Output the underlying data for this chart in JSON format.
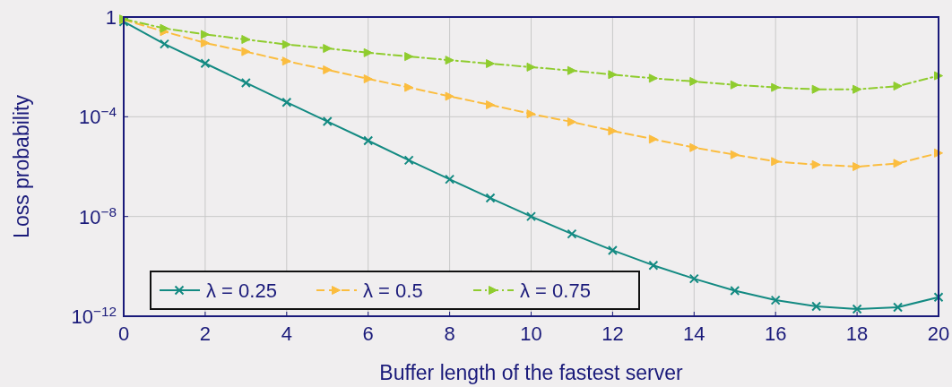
{
  "chart_data": {
    "type": "line",
    "xlabel": "Buffer length of the fastest server",
    "ylabel": "Loss probability",
    "x": [
      0,
      1,
      2,
      3,
      4,
      5,
      6,
      7,
      8,
      9,
      10,
      11,
      12,
      13,
      14,
      15,
      16,
      17,
      18,
      19,
      20
    ],
    "series": [
      {
        "name": "λ = 0.25",
        "color": "#138a82",
        "marker": "cross",
        "line_style": "solid",
        "values": [
          0.65,
          0.083,
          0.0138,
          0.0023,
          0.00038,
          6.5e-05,
          1.1e-05,
          1.8e-06,
          3.1e-07,
          5.5e-08,
          1e-08,
          2e-09,
          4.4e-10,
          1.1e-10,
          3.2e-11,
          1.05e-11,
          4.4e-12,
          2.5e-12,
          1.95e-12,
          2.3e-12,
          5.8e-12
        ]
      },
      {
        "name": "λ = 0.5",
        "color": "#fbbd3f",
        "marker": "triangle",
        "line_style": "dashed",
        "values": [
          0.78,
          0.26,
          0.091,
          0.041,
          0.017,
          0.0076,
          0.0033,
          0.0015,
          0.00066,
          0.0003,
          0.00013,
          6.2e-05,
          2.7e-05,
          1.26e-05,
          5.8e-06,
          3e-06,
          1.6e-06,
          1.2e-06,
          1e-06,
          1.35e-06,
          3.5e-06
        ]
      },
      {
        "name": "λ = 0.75",
        "color": "#8fcc2e",
        "marker": "triangle",
        "line_style": "dotted",
        "values": [
          0.83,
          0.35,
          0.2,
          0.126,
          0.079,
          0.055,
          0.037,
          0.026,
          0.0186,
          0.0135,
          0.0098,
          0.0071,
          0.0049,
          0.0035,
          0.0026,
          0.0019,
          0.0015,
          0.00126,
          0.00126,
          0.0017,
          0.0044
        ]
      }
    ],
    "xlim": [
      0,
      20
    ],
    "xticks": [
      0,
      2,
      4,
      6,
      8,
      10,
      12,
      14,
      16,
      18,
      20
    ],
    "ylim": [
      1e-12,
      1
    ],
    "yticks": [
      {
        "value": 1e-12,
        "label": "10$^{−12}$"
      },
      {
        "value": 1e-08,
        "label": "10$^{−8}$"
      },
      {
        "value": 0.0001,
        "label": "10$^{−4}$"
      },
      1
    ],
    "log": true,
    "grid": true,
    "legend": "bottom left"
  }
}
